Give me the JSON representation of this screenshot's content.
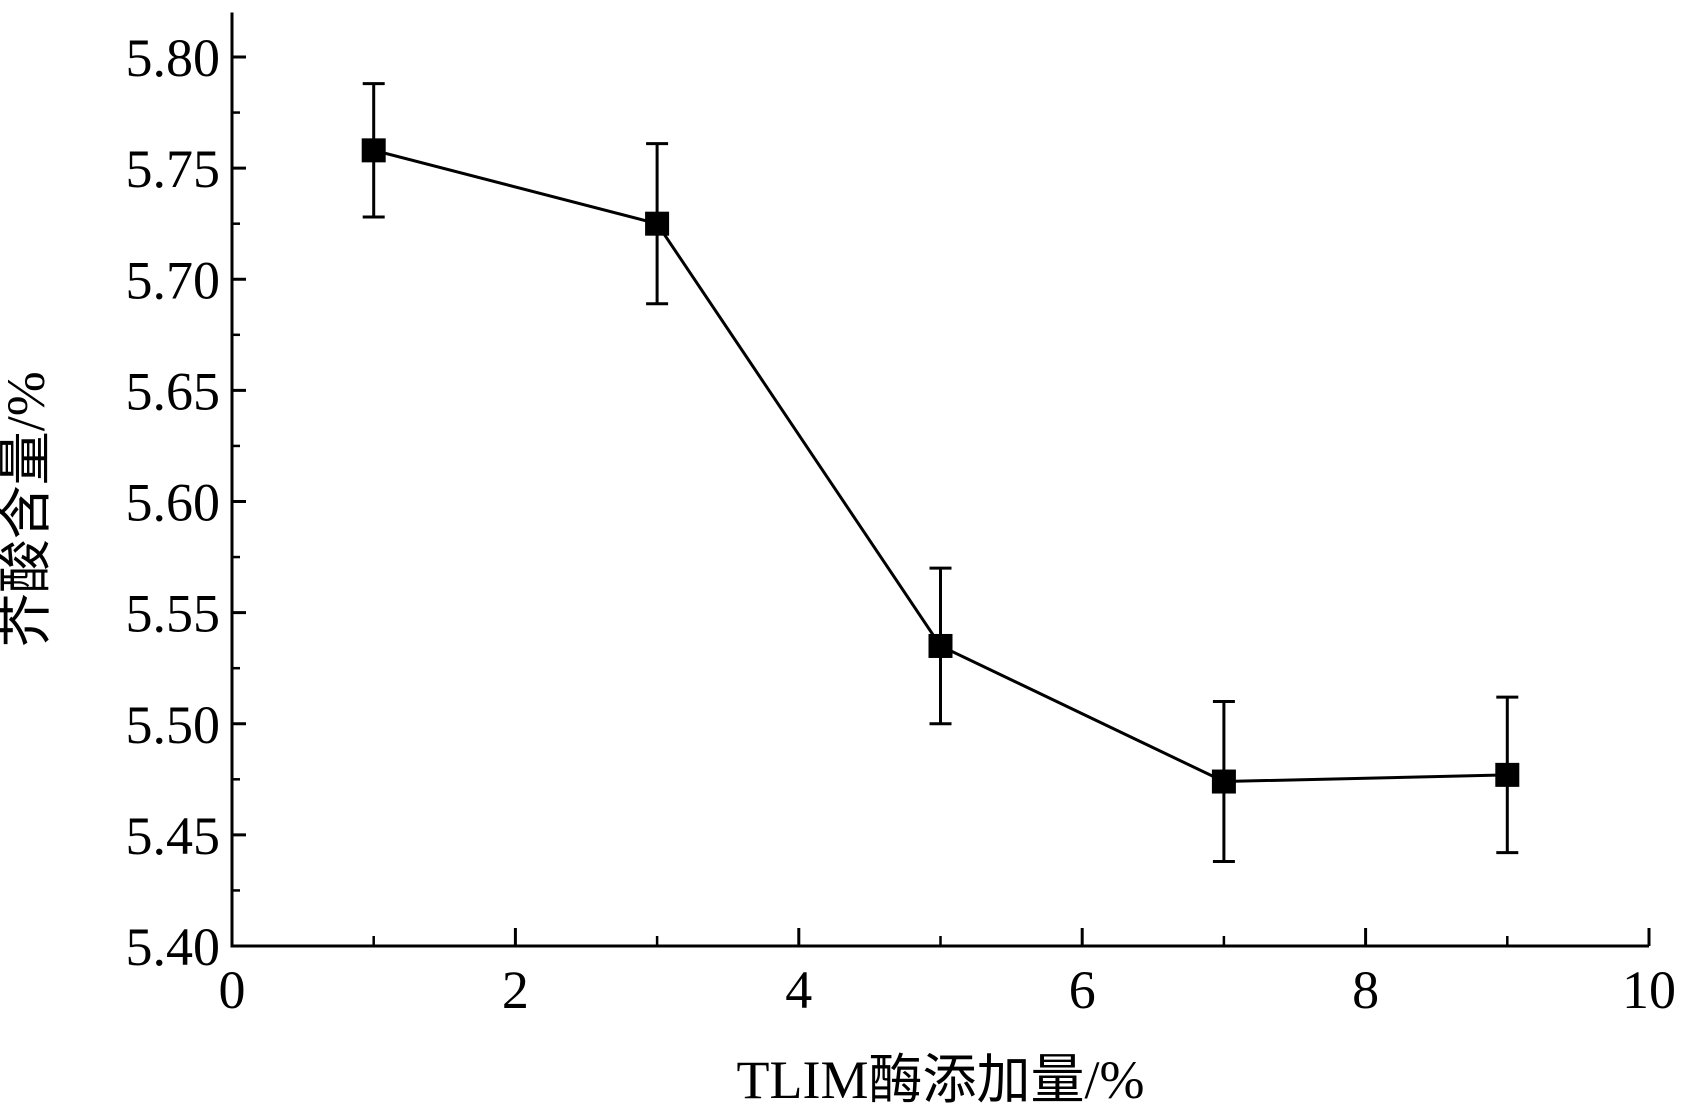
{
  "chart_data": {
    "type": "line",
    "title": "",
    "xlabel": "TLIM酶添加量/%",
    "ylabel": "芥酸含量/%",
    "xlim": [
      0,
      10
    ],
    "ylim": [
      5.4,
      5.82
    ],
    "x_ticks": [
      "0",
      "2",
      "4",
      "6",
      "8",
      "10"
    ],
    "y_ticks": [
      "5.40",
      "5.45",
      "5.50",
      "5.55",
      "5.60",
      "5.65",
      "5.70",
      "5.75",
      "5.80"
    ],
    "grid": false,
    "legend": "none",
    "marker": "square",
    "color": "#000000",
    "series": [
      {
        "x": [
          1,
          3,
          5,
          7,
          9
        ],
        "y": [
          5.758,
          5.725,
          5.535,
          5.474,
          5.477
        ],
        "error": [
          0.03,
          0.036,
          0.035,
          0.036,
          0.035
        ]
      }
    ]
  }
}
